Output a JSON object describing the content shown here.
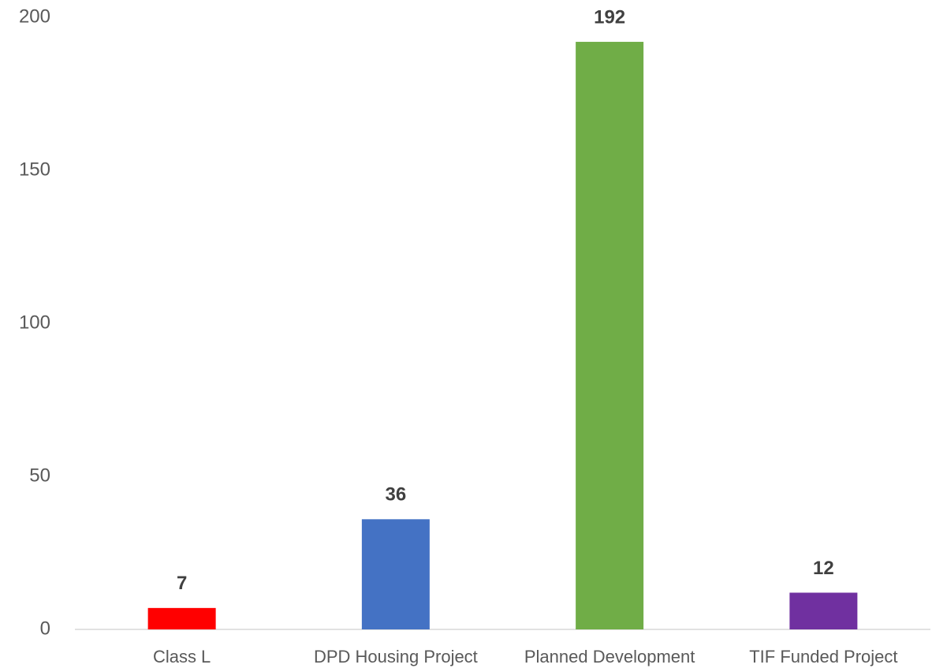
{
  "chart_data": {
    "type": "bar",
    "categories": [
      "Class L",
      "DPD Housing Project",
      "Planned Development",
      "TIF Funded Project"
    ],
    "values": [
      7,
      36,
      192,
      12
    ],
    "colors": [
      "#ff0000",
      "#4472c4",
      "#70ad47",
      "#7030a0"
    ],
    "ylim": [
      0,
      200
    ],
    "yticks": [
      0,
      50,
      100,
      150,
      200
    ],
    "grid": false
  }
}
